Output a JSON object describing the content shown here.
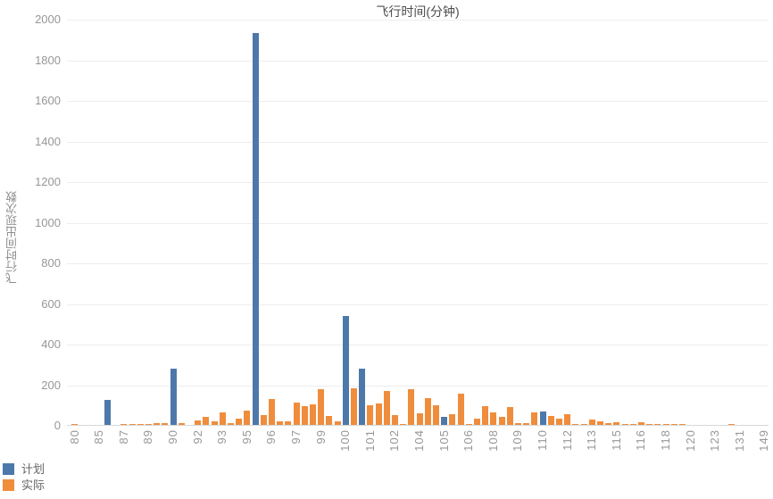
{
  "title": "飞行时间(分钟)",
  "y_axis": {
    "label": "飞行时间出现次数",
    "tick_labels": [
      "0",
      "200",
      "400",
      "600",
      "800",
      "1000",
      "1200",
      "1400",
      "1600",
      "1800",
      "2000"
    ],
    "min": 0,
    "max": 2000,
    "tick_step": 200
  },
  "x_axis": {
    "tick_labels": [
      "80",
      "85",
      "87",
      "89",
      "90",
      "92",
      "93",
      "95",
      "96",
      "97",
      "99",
      "100",
      "101",
      "102",
      "104",
      "105",
      "106",
      "108",
      "109",
      "110",
      "112",
      "113",
      "115",
      "116",
      "118",
      "120",
      "123",
      "131",
      "149"
    ],
    "tick_slot_interval": 3,
    "total_slots": 85
  },
  "legend": {
    "items": [
      {
        "name": "计划",
        "color": "#4d78aa"
      },
      {
        "name": "实际",
        "color": "#ef8d3c"
      }
    ]
  },
  "chart_data": {
    "type": "bar",
    "title": "飞行时间(分钟)",
    "xlabel": "",
    "ylabel": "飞行时间出现次数",
    "ylim": [
      0,
      2000
    ],
    "grid": true,
    "legend_position": "bottom-left",
    "x_tick_labels": [
      "80",
      "85",
      "87",
      "89",
      "90",
      "92",
      "93",
      "95",
      "96",
      "97",
      "99",
      "100",
      "101",
      "102",
      "104",
      "105",
      "106",
      "108",
      "109",
      "110",
      "112",
      "113",
      "115",
      "116",
      "118",
      "120",
      "123",
      "131",
      "149"
    ],
    "x_tick_slot_interval": 3,
    "total_slots": 85,
    "series": [
      {
        "name": "计划",
        "color": "#4d78aa",
        "values": [
          0,
          0,
          0,
          0,
          125,
          0,
          0,
          0,
          0,
          0,
          0,
          0,
          275,
          0,
          0,
          0,
          0,
          0,
          0,
          0,
          0,
          0,
          1930,
          0,
          0,
          0,
          0,
          0,
          0,
          0,
          0,
          0,
          0,
          535,
          0,
          278,
          0,
          0,
          0,
          0,
          0,
          0,
          0,
          0,
          0,
          41,
          0,
          0,
          0,
          0,
          0,
          0,
          0,
          0,
          0,
          0,
          0,
          68,
          0,
          0,
          0,
          0,
          0,
          0,
          0,
          0,
          0,
          0,
          0,
          0,
          0,
          0,
          0,
          0,
          0,
          0,
          0,
          0,
          0,
          0,
          0,
          0,
          0,
          0,
          0
        ]
      },
      {
        "name": "实际",
        "color": "#ef8d3c",
        "values": [
          4,
          0,
          0,
          0,
          0,
          0,
          5,
          5,
          6,
          6,
          8,
          10,
          0,
          8,
          0,
          23,
          40,
          17,
          62,
          9,
          31,
          70,
          0,
          50,
          128,
          19,
          19,
          112,
          93,
          100,
          176,
          46,
          19,
          0,
          181,
          0,
          97,
          105,
          166,
          49,
          4,
          175,
          57,
          131,
          97,
          0,
          53,
          156,
          2,
          31,
          93,
          63,
          38,
          87,
          7,
          9,
          60,
          0,
          45,
          32,
          52,
          4,
          4,
          25,
          18,
          7,
          13,
          6,
          4,
          13,
          5,
          5,
          5,
          5,
          5,
          0,
          0,
          0,
          0,
          0,
          4,
          0,
          0,
          0,
          0
        ]
      }
    ]
  }
}
